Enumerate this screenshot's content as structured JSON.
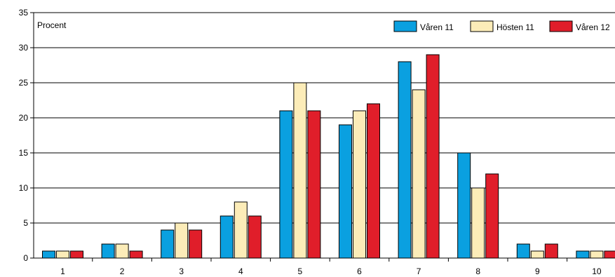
{
  "chart_data": {
    "type": "bar",
    "title": "",
    "xlabel": "",
    "ylabel": "Procent",
    "ylim": [
      0,
      35
    ],
    "yticks": [
      0,
      5,
      10,
      15,
      20,
      25,
      30,
      35
    ],
    "grid": true,
    "legend_position": "top-right",
    "categories": [
      "1",
      "2",
      "3",
      "4",
      "5",
      "6",
      "7",
      "8",
      "9",
      "10"
    ],
    "series": [
      {
        "name": "Våren 11",
        "color": "#0aa0e0",
        "values": [
          1,
          2,
          4,
          6,
          21,
          19,
          28,
          15,
          2,
          1
        ]
      },
      {
        "name": "Hösten 11",
        "color": "#fcecb8",
        "values": [
          1,
          2,
          5,
          8,
          25,
          21,
          24,
          10,
          1,
          1
        ]
      },
      {
        "name": "Våren 12",
        "color": "#e01e2a",
        "values": [
          1,
          1,
          4,
          6,
          21,
          22,
          29,
          12,
          2,
          1
        ]
      }
    ]
  }
}
